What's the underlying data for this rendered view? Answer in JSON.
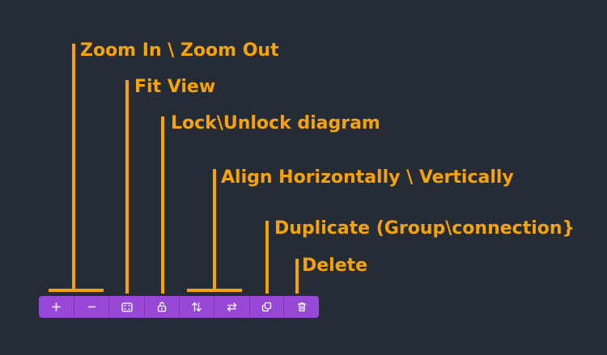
{
  "annotations": {
    "zoom": "Zoom In \\ Zoom Out",
    "fit_view": "Fit View",
    "lock": "Lock\\Unlock diagram",
    "align": "Align Horizontally \\ Vertically",
    "duplicate": "Duplicate (Group\\connection}",
    "delete": "Delete"
  },
  "toolbar": {
    "buttons": [
      {
        "icon": "plus-icon"
      },
      {
        "icon": "minus-icon"
      },
      {
        "icon": "fit-view-icon"
      },
      {
        "icon": "unlock-icon"
      },
      {
        "icon": "align-vertical-arrows-icon"
      },
      {
        "icon": "align-horizontal-arrows-icon"
      },
      {
        "icon": "duplicate-icon"
      },
      {
        "icon": "trash-icon"
      }
    ]
  },
  "colors": {
    "background": "#262c35",
    "annotation": "#f5a30a",
    "toolbar": "#9748d6",
    "icon": "#ffffff"
  }
}
